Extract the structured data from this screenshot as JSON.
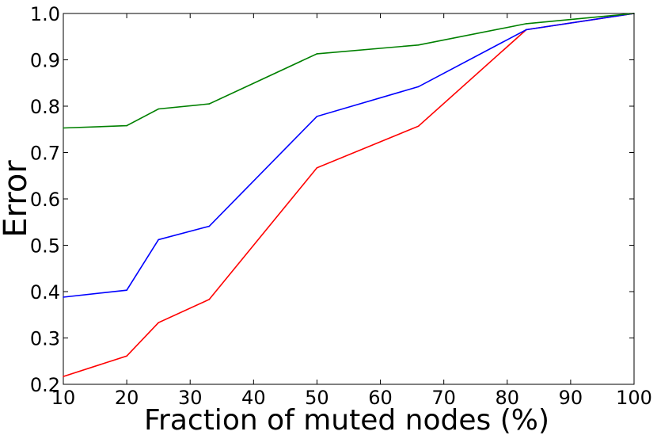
{
  "chart_data": {
    "type": "line",
    "xlabel": "Fraction of muted nodes (%)",
    "ylabel": "Error",
    "xlim": [
      10,
      100
    ],
    "ylim": [
      0.2,
      1.0
    ],
    "x_ticks": [
      10,
      20,
      30,
      40,
      50,
      60,
      70,
      80,
      90,
      100
    ],
    "y_ticks": [
      0.2,
      0.3,
      0.4,
      0.5,
      0.6,
      0.7,
      0.8,
      0.9,
      1.0
    ],
    "x_tick_labels": [
      "10",
      "20",
      "30",
      "40",
      "50",
      "60",
      "70",
      "80",
      "90",
      "100"
    ],
    "y_tick_labels": [
      "0.2",
      "0.3",
      "0.4",
      "0.5",
      "0.6",
      "0.7",
      "0.8",
      "0.9",
      "1.0"
    ],
    "grid": false,
    "legend": "none",
    "series": [
      {
        "color": "#ff0000",
        "x": [
          10,
          20,
          25,
          33,
          50,
          66,
          83,
          100
        ],
        "y": [
          0.217,
          0.261,
          0.333,
          0.383,
          0.667,
          0.757,
          0.965,
          1.0
        ]
      },
      {
        "color": "#0000ff",
        "x": [
          10,
          20,
          25,
          33,
          50,
          66,
          83,
          100
        ],
        "y": [
          0.388,
          0.403,
          0.512,
          0.541,
          0.778,
          0.842,
          0.965,
          1.0
        ]
      },
      {
        "color": "#008000",
        "x": [
          10,
          20,
          25,
          33,
          50,
          66,
          83,
          100
        ],
        "y": [
          0.753,
          0.758,
          0.794,
          0.805,
          0.913,
          0.932,
          0.978,
          1.0
        ]
      }
    ]
  }
}
